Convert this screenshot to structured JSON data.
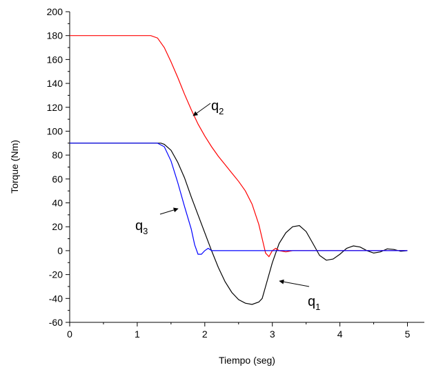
{
  "chart_data": {
    "type": "line",
    "xlabel": "Tiempo (seg)",
    "ylabel": "Torque (Nm)",
    "xlim": [
      0,
      5.25
    ],
    "ylim": [
      -60,
      200
    ],
    "xticks": [
      0,
      1,
      2,
      3,
      4,
      5
    ],
    "yticks": [
      -60,
      -40,
      -20,
      0,
      20,
      40,
      60,
      80,
      100,
      120,
      140,
      160,
      180,
      200
    ],
    "minor_ticks": true,
    "series": [
      {
        "color": "#000000",
        "x": [
          0,
          1.35,
          1.4,
          1.5,
          1.6,
          1.7,
          1.8,
          1.9,
          2.0,
          2.1,
          2.2,
          2.3,
          2.4,
          2.5,
          2.6,
          2.7,
          2.8,
          2.85,
          2.9,
          3.0,
          3.1,
          3.2,
          3.3,
          3.4,
          3.5,
          3.6,
          3.7,
          3.8,
          3.9,
          4.0,
          4.1,
          4.2,
          4.3,
          4.4,
          4.5,
          4.6,
          4.7,
          4.8,
          4.9,
          5.0
        ],
        "values": [
          90,
          90,
          89,
          84,
          74,
          61,
          45,
          30,
          15,
          0,
          -14,
          -26,
          -35,
          -41,
          -44,
          -45,
          -43,
          -40,
          -30,
          -10,
          6,
          15,
          20,
          21,
          16,
          6,
          -4,
          -8,
          -7,
          -3,
          2,
          4,
          3,
          0,
          -2,
          -1,
          1.5,
          1,
          -0.5,
          0
        ]
      },
      {
        "color": "#ff0000",
        "x": [
          0,
          1.2,
          1.3,
          1.4,
          1.5,
          1.6,
          1.7,
          1.8,
          1.9,
          2.0,
          2.1,
          2.2,
          2.3,
          2.4,
          2.5,
          2.6,
          2.7,
          2.8,
          2.85,
          2.9,
          2.95,
          3.0,
          3.05,
          3.1,
          3.2,
          3.3,
          3.4,
          5.0
        ],
        "values": [
          180,
          180,
          178,
          170,
          158,
          145,
          131,
          118,
          106,
          96,
          87,
          79,
          72,
          65,
          58,
          50,
          39,
          22,
          10,
          -2,
          -5,
          0,
          2,
          0,
          -1,
          0,
          0,
          0
        ]
      },
      {
        "color": "#0000ff",
        "x": [
          0,
          1.3,
          1.4,
          1.5,
          1.6,
          1.7,
          1.8,
          1.85,
          1.9,
          1.95,
          2.0,
          2.05,
          2.1,
          2.2,
          5.0
        ],
        "values": [
          90,
          90,
          87,
          75,
          57,
          37,
          18,
          5,
          -3,
          -3,
          0,
          2,
          0,
          0,
          0
        ]
      }
    ],
    "annotations": [
      {
        "text": "q",
        "sub": "2"
      },
      {
        "text": "q",
        "sub": "3"
      },
      {
        "text": "q",
        "sub": "1"
      }
    ]
  }
}
